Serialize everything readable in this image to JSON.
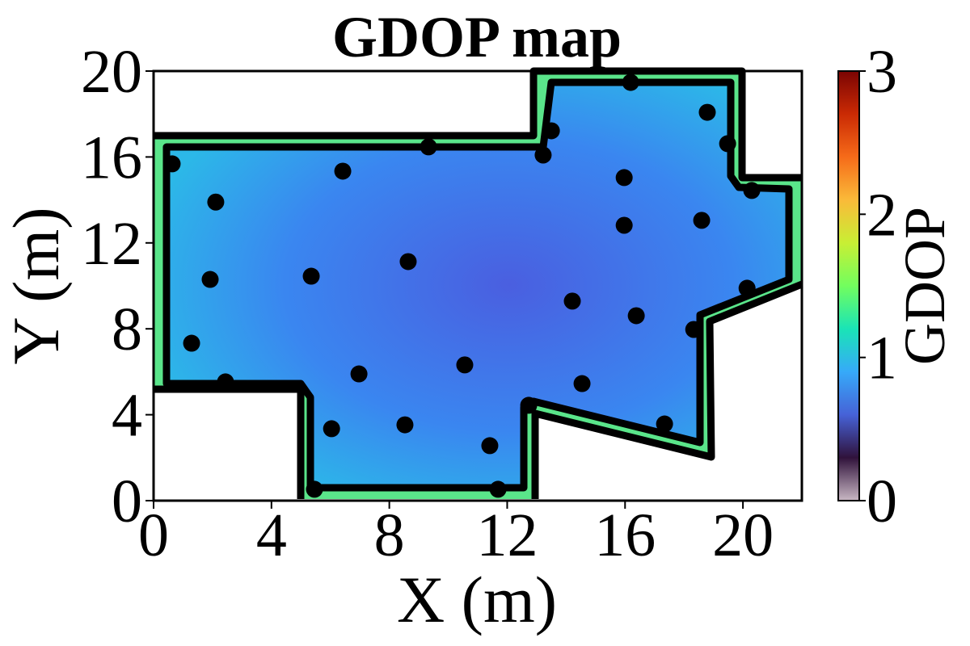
{
  "chart_data": {
    "type": "scatter",
    "title": "GDOP map",
    "x_label": "X (m)",
    "y_label": "Y (m)",
    "colorbar_label": "GDOP",
    "colormap": "turbo",
    "clim": [
      0,
      3
    ],
    "cticks": [
      0,
      1,
      2,
      3
    ],
    "xlim": [
      0,
      22
    ],
    "ylim": [
      0,
      20
    ],
    "xticks": [
      0,
      4,
      8,
      12,
      16,
      20
    ],
    "yticks": [
      0,
      4,
      8,
      12,
      16,
      20
    ],
    "series": [
      {
        "color": "#000000",
        "x": [
          0.63,
          2.11,
          1.92,
          1.29,
          2.44,
          6.42,
          9.33,
          5.35,
          8.64,
          6.97,
          10.56,
          6.04,
          8.53,
          11.41,
          5.46,
          11.69,
          12.73,
          13.5,
          13.22,
          16.19,
          18.79,
          19.48,
          20.3,
          15.97,
          15.97,
          18.6,
          20.14,
          14.21,
          16.38,
          14.54,
          18.33,
          17.34
        ],
        "values": [
          15.68,
          13.9,
          10.3,
          7.33,
          5.53,
          15.34,
          16.47,
          10.45,
          11.13,
          5.9,
          6.32,
          3.35,
          3.53,
          2.56,
          0.53,
          0.53,
          4.44,
          17.22,
          16.09,
          19.47,
          18.08,
          16.62,
          14.44,
          15.04,
          12.82,
          13.05,
          9.89,
          9.29,
          8.61,
          5.45,
          7.97,
          3.57
        ]
      }
    ]
  }
}
